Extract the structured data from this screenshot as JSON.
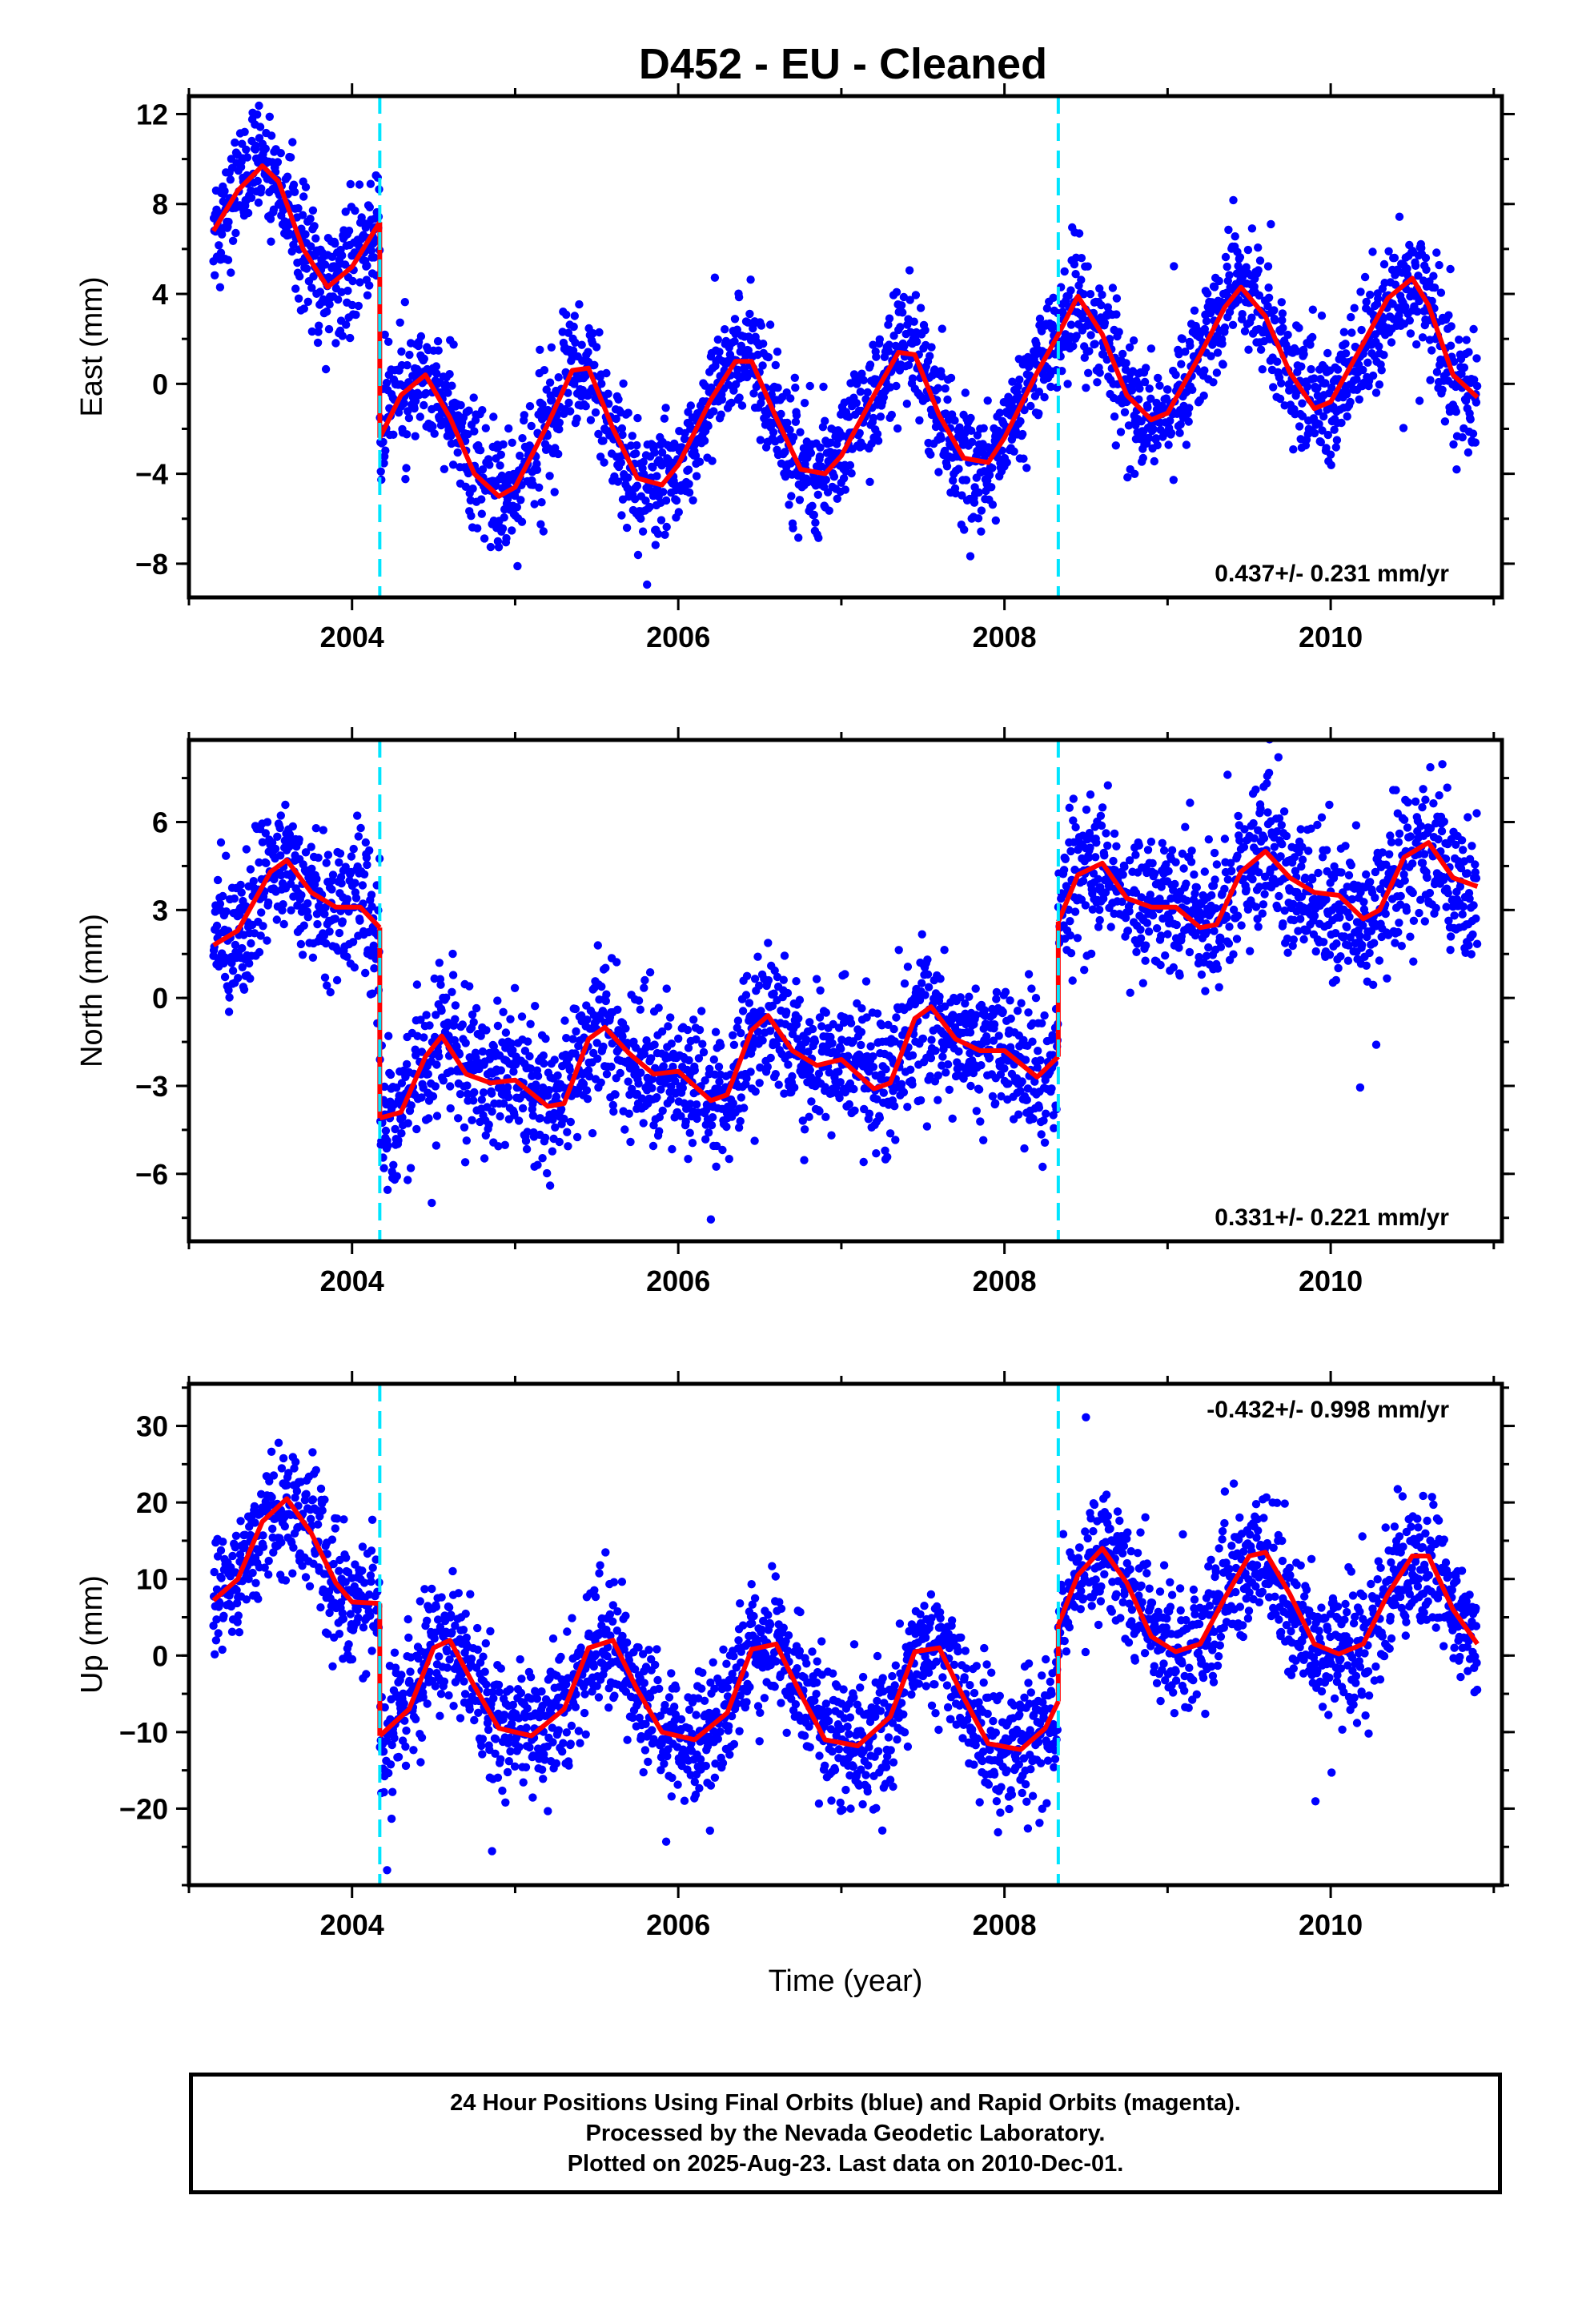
{
  "title": "D452  - EU - Cleaned",
  "colors": {
    "data": "#0000ff",
    "model": "#ff0000",
    "break": "#00e5ff",
    "frame": "#000000"
  },
  "footer": {
    "line1": "24 Hour Positions Using Final Orbits (blue) and Rapid Orbits (magenta).",
    "line2": "Processed by the Nevada Geodetic Laboratory.",
    "line3": "Plotted on 2025-Aug-23. Last data on 2010-Dec-01."
  },
  "chart_data": [
    {
      "type": "scatter",
      "ylabel": "East (mm)",
      "rate_text": "0.437+/- 0.231 mm/yr",
      "rate_position": "bottom-right",
      "xlim": [
        2003.0,
        2011.05
      ],
      "ylim": [
        -9.5,
        12.8
      ],
      "xticks": [
        2004,
        2006,
        2008,
        2010
      ],
      "yticks": [
        -8,
        -4,
        0,
        4,
        8,
        12
      ],
      "y_tick_labels": [
        "−8",
        "−4",
        "0",
        "4",
        "8",
        "12"
      ],
      "breaks": [
        2004.17,
        2008.33
      ],
      "model_segments": [
        {
          "x": [
            2003.15,
            2003.3,
            2003.45,
            2003.55,
            2003.7,
            2003.85,
            2004.0,
            2004.17
          ],
          "y": [
            6.8,
            8.6,
            9.7,
            9.0,
            6.0,
            4.3,
            5.2,
            7.2
          ]
        },
        {
          "x": [
            2004.17,
            2004.3,
            2004.45,
            2004.6,
            2004.75,
            2004.9,
            2005.0,
            2005.2,
            2005.35,
            2005.45,
            2005.6,
            2005.75,
            2005.9,
            2006.0,
            2006.2,
            2006.35,
            2006.45,
            2006.6,
            2006.75,
            2006.9,
            2007.0,
            2007.2,
            2007.35,
            2007.45,
            2007.6,
            2007.75,
            2007.9,
            2008.0,
            2008.2,
            2008.33
          ],
          "y": [
            -2.4,
            -0.5,
            0.4,
            -1.5,
            -4.0,
            -5.0,
            -4.6,
            -1.8,
            0.6,
            0.7,
            -2.0,
            -4.2,
            -4.5,
            -3.6,
            -0.7,
            1.0,
            1.0,
            -1.5,
            -3.8,
            -4.0,
            -3.2,
            -0.5,
            1.4,
            1.3,
            -1.4,
            -3.3,
            -3.5,
            -2.4,
            0.5,
            2.2
          ]
        },
        {
          "x": [
            2008.33,
            2008.45,
            2008.6,
            2008.75,
            2008.9,
            2009.0,
            2009.2,
            2009.35,
            2009.45,
            2009.6,
            2009.75,
            2009.9,
            2010.0,
            2010.2,
            2010.35,
            2010.5,
            2010.6,
            2010.75,
            2010.9
          ],
          "y": [
            2.2,
            3.9,
            2.2,
            -0.5,
            -1.6,
            -1.3,
            1.3,
            3.4,
            4.3,
            3.0,
            0.5,
            -1.1,
            -0.8,
            1.8,
            3.8,
            4.7,
            3.5,
            0.4,
            -0.6
          ]
        }
      ],
      "scatter_sigma": 1.3
    },
    {
      "type": "scatter",
      "ylabel": "North (mm)",
      "rate_text": "0.331+/- 0.221 mm/yr",
      "rate_position": "bottom-right",
      "xlim": [
        2003.0,
        2011.05
      ],
      "ylim": [
        -8.3,
        8.8
      ],
      "xticks": [
        2004,
        2006,
        2008,
        2010
      ],
      "yticks": [
        -6,
        -3,
        0,
        3,
        6
      ],
      "y_tick_labels": [
        "−6",
        "−3",
        "0",
        "3",
        "6"
      ],
      "breaks": [
        2004.17,
        2008.33
      ],
      "model_segments": [
        {
          "x": [
            2003.15,
            2003.3,
            2003.5,
            2003.6,
            2003.75,
            2003.9,
            2004.05,
            2004.17
          ],
          "y": [
            1.8,
            2.3,
            4.3,
            4.7,
            3.6,
            3.1,
            3.1,
            2.4
          ]
        },
        {
          "x": [
            2004.17,
            2004.3,
            2004.45,
            2004.55,
            2004.7,
            2004.85,
            2005.0,
            2005.2,
            2005.3,
            2005.45,
            2005.55,
            2005.7,
            2005.85,
            2006.0,
            2006.2,
            2006.3,
            2006.45,
            2006.55,
            2006.7,
            2006.85,
            2007.0,
            2007.2,
            2007.3,
            2007.45,
            2007.55,
            2007.7,
            2007.85,
            2008.0,
            2008.2,
            2008.33
          ],
          "y": [
            -4.1,
            -3.9,
            -2.0,
            -1.3,
            -2.6,
            -2.9,
            -2.8,
            -3.7,
            -3.6,
            -1.4,
            -1.0,
            -1.9,
            -2.6,
            -2.5,
            -3.5,
            -3.3,
            -1.1,
            -0.6,
            -1.8,
            -2.3,
            -2.1,
            -3.1,
            -2.9,
            -0.7,
            -0.3,
            -1.4,
            -1.8,
            -1.8,
            -2.7,
            -2.0
          ]
        },
        {
          "x": [
            2008.33,
            2008.45,
            2008.6,
            2008.75,
            2008.9,
            2009.05,
            2009.2,
            2009.3,
            2009.45,
            2009.6,
            2009.75,
            2009.9,
            2010.05,
            2010.2,
            2010.3,
            2010.45,
            2010.6,
            2010.75,
            2010.9
          ],
          "y": [
            2.6,
            4.2,
            4.6,
            3.4,
            3.1,
            3.1,
            2.4,
            2.5,
            4.3,
            5.0,
            4.1,
            3.6,
            3.5,
            2.7,
            3.0,
            4.8,
            5.3,
            4.1,
            3.8
          ]
        }
      ],
      "scatter_sigma": 1.2
    },
    {
      "type": "scatter",
      "xlabel": "Time (year)",
      "ylabel": "Up (mm)",
      "rate_text": "-0.432+/- 0.998 mm/yr",
      "rate_position": "top-right",
      "xlim": [
        2003.0,
        2011.05
      ],
      "ylim": [
        -30.0,
        35.5
      ],
      "xticks": [
        2004,
        2006,
        2008,
        2010
      ],
      "yticks": [
        -20,
        -10,
        0,
        10,
        20,
        30
      ],
      "y_tick_labels": [
        "−20",
        "−10",
        "0",
        "10",
        "20",
        "30"
      ],
      "breaks": [
        2004.17,
        2008.33
      ],
      "model_segments": [
        {
          "x": [
            2003.15,
            2003.3,
            2003.45,
            2003.6,
            2003.75,
            2003.9,
            2004.0,
            2004.17
          ],
          "y": [
            7.2,
            10.0,
            17.5,
            20.5,
            16.0,
            9.5,
            7.0,
            6.8
          ]
        },
        {
          "x": [
            2004.17,
            2004.35,
            2004.5,
            2004.6,
            2004.75,
            2004.9,
            2005.1,
            2005.3,
            2005.45,
            2005.6,
            2005.75,
            2005.9,
            2006.1,
            2006.3,
            2006.45,
            2006.6,
            2006.75,
            2006.9,
            2007.1,
            2007.3,
            2007.45,
            2007.6,
            2007.75,
            2007.9,
            2008.1,
            2008.25,
            2008.33
          ],
          "y": [
            -10.5,
            -7.0,
            1.0,
            2.0,
            -4.0,
            -9.5,
            -10.5,
            -7.0,
            1.0,
            2.0,
            -4.5,
            -10.0,
            -11.0,
            -7.5,
            0.8,
            1.5,
            -5.0,
            -11.0,
            -11.8,
            -8.0,
            0.5,
            1.0,
            -5.5,
            -11.5,
            -12.3,
            -9.5,
            -6.0
          ]
        },
        {
          "x": [
            2008.33,
            2008.45,
            2008.6,
            2008.75,
            2008.9,
            2009.05,
            2009.2,
            2009.35,
            2009.5,
            2009.6,
            2009.75,
            2009.9,
            2010.05,
            2010.2,
            2010.35,
            2010.5,
            2010.6,
            2010.75,
            2010.9
          ],
          "y": [
            4.0,
            10.5,
            14.0,
            9.5,
            2.5,
            0.5,
            1.5,
            7.5,
            13.0,
            13.5,
            8.0,
            1.5,
            0.2,
            1.5,
            8.0,
            13.0,
            13.0,
            6.0,
            1.5
          ]
        }
      ],
      "scatter_sigma": 4.2
    }
  ]
}
